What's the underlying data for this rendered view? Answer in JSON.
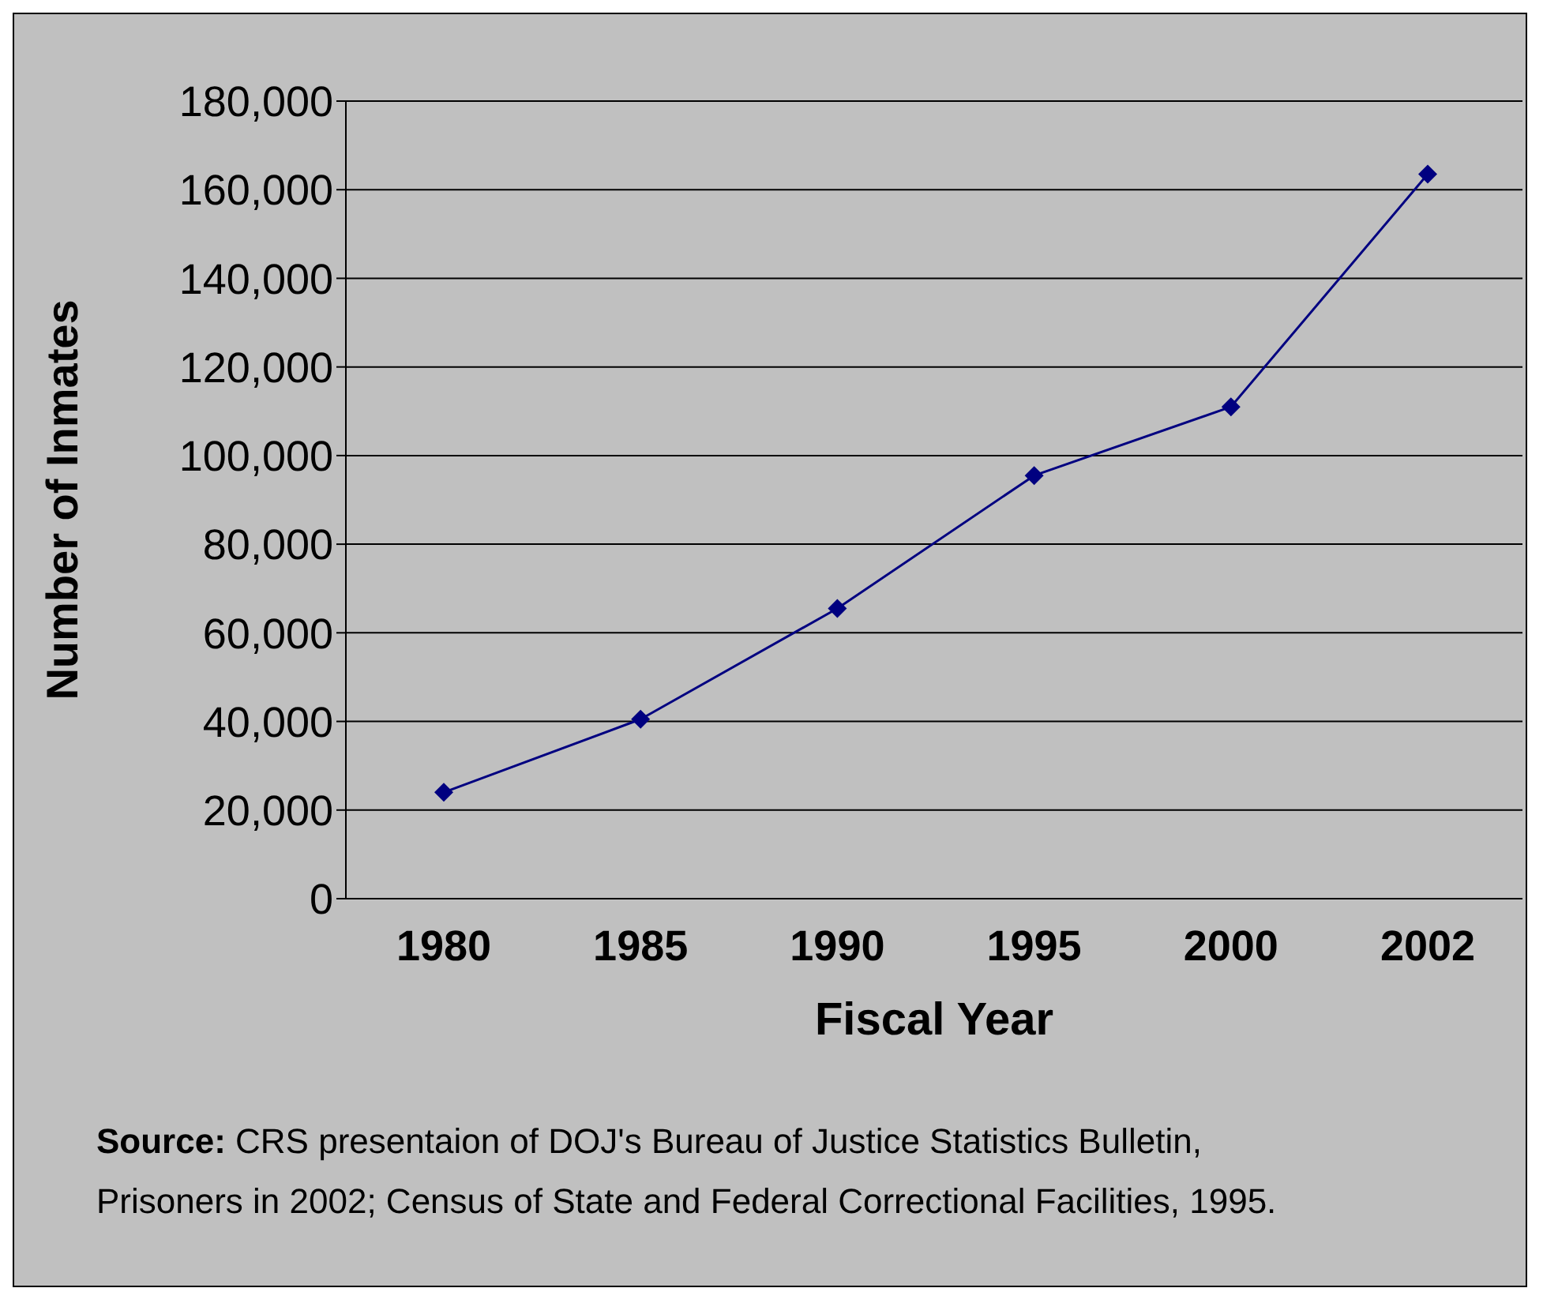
{
  "chart_data": {
    "type": "line",
    "xlabel": "Fiscal Year",
    "ylabel": "Number of Inmates",
    "categories": [
      "1980",
      "1985",
      "1990",
      "1995",
      "2000",
      "2002"
    ],
    "series": [
      {
        "color": "#000080",
        "values": [
          24000,
          40500,
          65500,
          95500,
          111000,
          163500
        ]
      }
    ],
    "ylim": [
      0,
      180000
    ],
    "yticks": [
      0,
      {
        "value": 20000,
        "label": "20,000"
      },
      {
        "value": 40000,
        "label": "40,000"
      },
      {
        "value": 60000,
        "label": "60,000"
      },
      {
        "value": 80000,
        "label": "80,000"
      },
      {
        "value": 100000,
        "label": "100,000"
      },
      {
        "value": 120000,
        "label": "120,000"
      },
      {
        "value": 140000,
        "label": "140,000"
      },
      {
        "value": 160000,
        "label": "160,000"
      },
      {
        "value": 180000,
        "label": "180,000"
      }
    ],
    "grid": "y",
    "marker": "diamond",
    "line_style": "solid",
    "legend": false,
    "annotations": [
      "Source: CRS presentaion of DOJ's Bureau of Justice Statistics Bulletin, Prisoners in 2002; Census of State and Federal Correctional Facilities, 1995."
    ]
  }
}
